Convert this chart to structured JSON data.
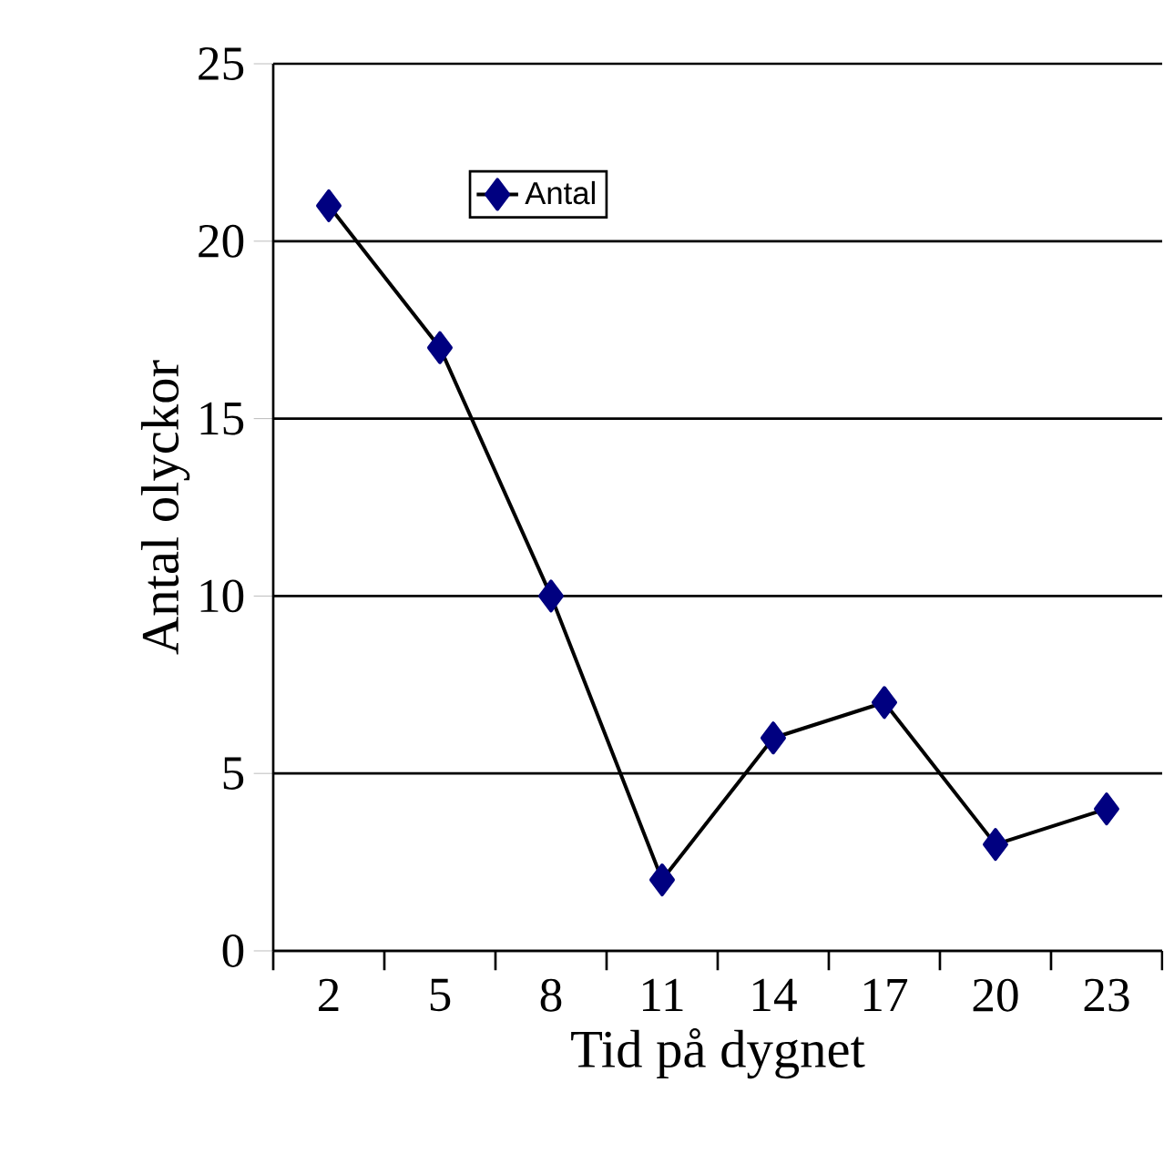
{
  "chart_data": {
    "type": "line",
    "xlabel": "Tid på dygnet",
    "ylabel": "Antal olyckor",
    "categories": [
      "2",
      "5",
      "8",
      "11",
      "14",
      "17",
      "20",
      "23"
    ],
    "series": [
      {
        "name": "Antal",
        "color": "#000080",
        "values": [
          21,
          17,
          10,
          2,
          6,
          7,
          3,
          4
        ]
      }
    ],
    "ylim": [
      0,
      25
    ],
    "yticks": [
      0,
      5,
      10,
      15,
      20,
      25
    ],
    "grid": "y",
    "legend": "top left",
    "marker": "diamond",
    "line_style": "solid"
  }
}
